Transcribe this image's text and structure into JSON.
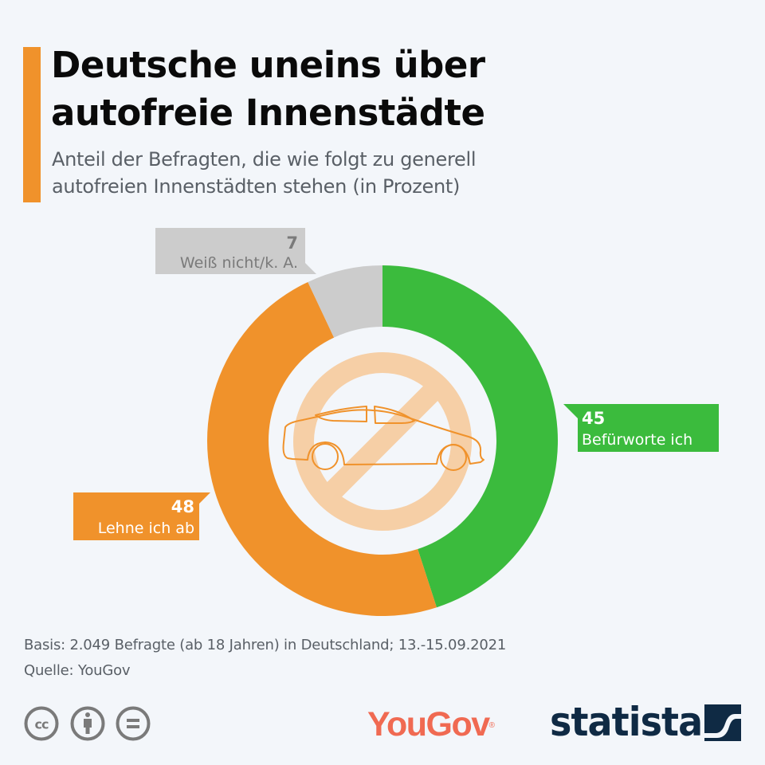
{
  "header": {
    "title_line1": "Deutsche uneins über",
    "title_line2": "autofreie Innenstädte",
    "subtitle_line1": "Anteil der Befragten, die wie folgt zu generell",
    "subtitle_line2": "autofreien Innenstädten stehen (in Prozent)"
  },
  "colors": {
    "accent": "#f0922b",
    "favor": "#3bbb3d",
    "oppose": "#f0922b",
    "unknown": "#cccccc",
    "unknown_text": "#7a7a7a",
    "background": "#f3f6fa",
    "icon_fill": "#f6cfa6",
    "icon_stroke": "#f0922b"
  },
  "chart_data": {
    "type": "pie",
    "variant": "donut",
    "title": "Deutsche uneins über autofreie Innenstädte",
    "subtitle": "Anteil der Befragten, die wie folgt zu generell autofreien Innenstädten stehen (in Prozent)",
    "unit": "%",
    "start": "top, clockwise",
    "slices": [
      {
        "label": "Befürworte ich",
        "value": 45,
        "color": "#3bbb3d"
      },
      {
        "label": "Lehne ich ab",
        "value": 48,
        "color": "#f0922b"
      },
      {
        "label": "Weiß nicht/k. A.",
        "value": 7,
        "color": "#cccccc"
      }
    ],
    "center_icon": "no-cars-icon"
  },
  "footer": {
    "basis": "Basis: 2.049 Befragte (ab 18 Jahren) in Deutschland; 13.-15.09.2021",
    "source": "Quelle: YouGov"
  },
  "branding": {
    "license_icons": [
      "cc-icon",
      "attribution-icon",
      "no-derivatives-icon"
    ],
    "partner_logo": "YouGov",
    "partner_logo_mark": "®",
    "publisher_logo": "statista"
  }
}
